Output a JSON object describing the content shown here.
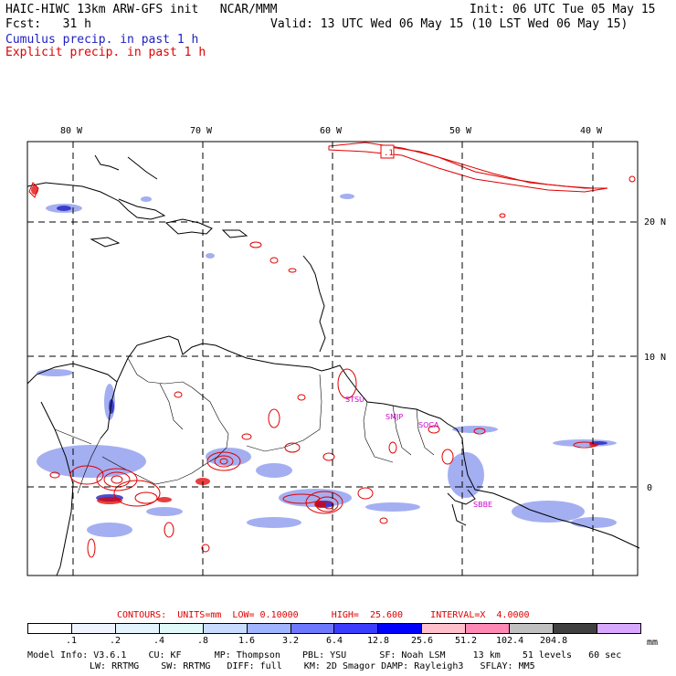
{
  "header": {
    "title_left": "HAIC-HIWC 13km ARW-GFS init   NCAR/MMM",
    "init": "Init: 06 UTC Tue 05 May 15",
    "fcst": "Fcst:   31 h",
    "valid": "Valid: 13 UTC Wed 06 May 15 (10 LST Wed 06 May 15)",
    "cumulus_label": "Cumulus precip. in past 1 h",
    "explicit_label": "Explicit precip. in past 1 h"
  },
  "colors": {
    "cumulus": "#2020c0",
    "explicit": "#e00000",
    "magenta": "#cc00cc",
    "grid": "#000000"
  },
  "axes": {
    "lon_labels": [
      "80 W",
      "70 W",
      "60 W",
      "50 W",
      "40 W"
    ],
    "lat_labels": [
      "20 N",
      "10 N",
      "0"
    ]
  },
  "stations": [
    "STSU",
    "SMJP",
    "SOCA",
    "SBBE"
  ],
  "contour_marker": ".1",
  "contours": {
    "label": "CONTOURS:  UNITS=mm  LOW= 0.10000      HIGH=  25.600     INTERVAL=X  4.0000"
  },
  "colorbar": {
    "unit": "mm",
    "ticks": [
      ".1",
      ".2",
      ".4",
      ".8",
      "1.6",
      "3.2",
      "6.4",
      "12.8",
      "25.6",
      "51.2",
      "102.4",
      "204.8"
    ],
    "colors": [
      "#ffffff",
      "#f0f4ff",
      "#e4f4ff",
      "#e0fafa",
      "#c8dcff",
      "#a0b4ff",
      "#6e78ff",
      "#3c3cff",
      "#0000ff",
      "#ffc0cc",
      "#ff88b4",
      "#c0c0c0",
      "#404040",
      "#d8a8ff"
    ]
  },
  "model_info": {
    "line1": "Model Info: V3.6.1    CU: KF      MP: Thompson    PBL: YSU      SF: Noah LSM     13 km    51 levels   60 sec",
    "line2": "LW: RRTMG    SW: RRTMG   DIFF: full    KM: 2D Smagor DAMP: Rayleigh3   SFLAY: MM5"
  }
}
